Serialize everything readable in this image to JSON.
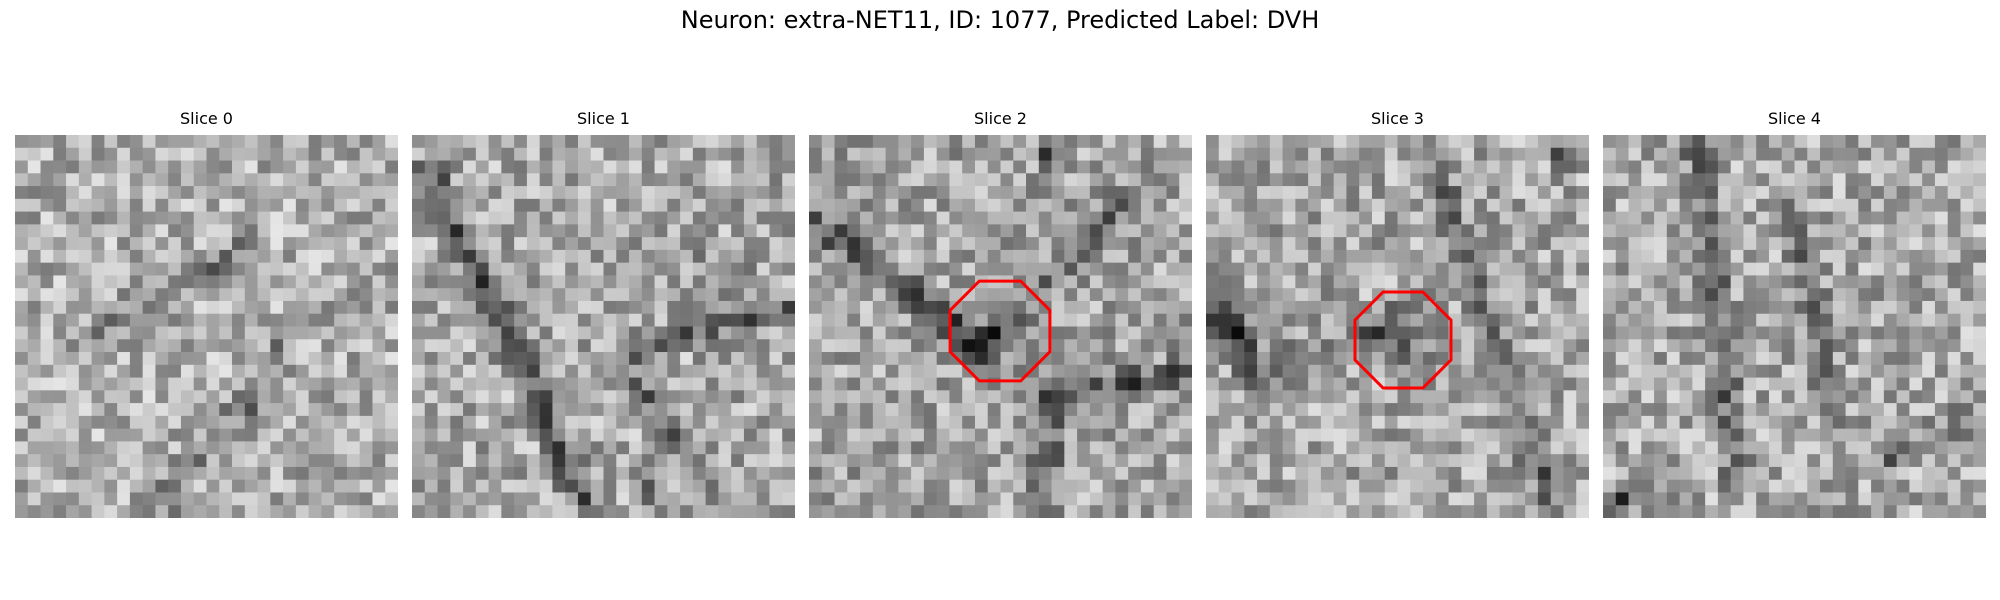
{
  "figure": {
    "title": "Neuron: extra-NET11, ID: 1077, Predicted Label: DVH"
  },
  "panels": [
    {
      "title": "Slice 0",
      "marker": null
    },
    {
      "title": "Slice 1",
      "marker": null
    },
    {
      "title": "Slice 2",
      "marker": {
        "shape": "octagon",
        "color": "#ff0000"
      }
    },
    {
      "title": "Slice 3",
      "marker": {
        "shape": "octagon",
        "color": "#ff0000"
      }
    },
    {
      "title": "Slice 4",
      "marker": null
    }
  ],
  "image_grid": {
    "pixels_per_side": 30,
    "colormap": "gray"
  }
}
